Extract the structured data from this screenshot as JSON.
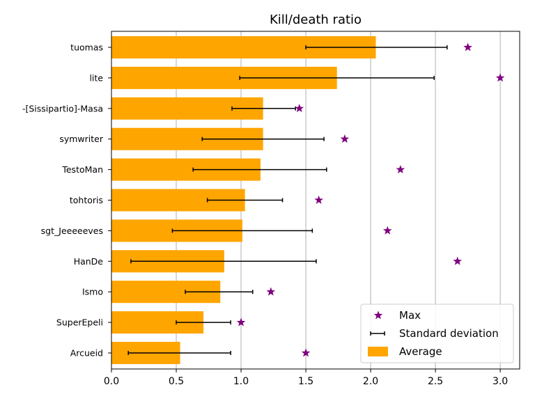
{
  "chart_data": {
    "type": "bar",
    "orientation": "horizontal",
    "title": "Kill/death ratio",
    "xlabel": "",
    "ylabel": "",
    "xlim": [
      0,
      3.15
    ],
    "xticks": [
      0.0,
      0.5,
      1.0,
      1.5,
      2.0,
      2.5,
      3.0
    ],
    "xtick_labels": [
      "0.0",
      "0.5",
      "1.0",
      "1.5",
      "2.0",
      "2.5",
      "3.0"
    ],
    "grid": "vertical",
    "legend_position": "lower-right",
    "categories": [
      "tuomas",
      "lite",
      "-[Sissipartio]-Masa",
      "symwriter",
      "TestoMan",
      "tohtoris",
      "sgt_Jeeeeeves",
      "HanDe",
      "Ismo",
      "SuperEpeli",
      "Arcueid"
    ],
    "series": [
      {
        "name": "Average",
        "kind": "bar",
        "color": "#ffa500",
        "values": [
          2.04,
          1.74,
          1.17,
          1.17,
          1.15,
          1.03,
          1.01,
          0.87,
          0.84,
          0.71,
          0.53
        ]
      },
      {
        "name": "Standard deviation",
        "kind": "errorbar",
        "color": "#000000",
        "lower": [
          1.5,
          0.99,
          0.93,
          0.7,
          0.63,
          0.74,
          0.47,
          0.15,
          0.57,
          0.5,
          0.13
        ],
        "upper": [
          2.59,
          2.49,
          1.42,
          1.64,
          1.66,
          1.32,
          1.55,
          1.58,
          1.09,
          0.92,
          0.92
        ]
      },
      {
        "name": "Max",
        "kind": "marker",
        "marker": "star",
        "color": "#800080",
        "values": [
          2.75,
          3.0,
          1.45,
          1.8,
          2.23,
          1.6,
          2.13,
          2.67,
          1.23,
          1.0,
          1.5
        ]
      }
    ]
  }
}
